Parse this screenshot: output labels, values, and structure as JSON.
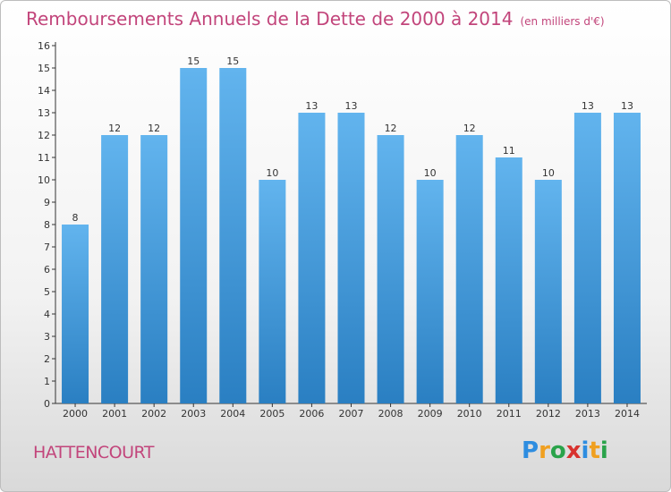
{
  "header": {
    "title": "Remboursements Annuels de la Dette de 2000 à 2014",
    "subtitle": "(en milliers d'€)"
  },
  "footer": {
    "town": "HATTENCOURT",
    "logo_letters": [
      "P",
      "r",
      "o",
      "x",
      "i",
      "t",
      "i"
    ],
    "logo_colors": [
      "#2e8de0",
      "#f0a020",
      "#2aa34a",
      "#d8322e",
      "#2e8de0",
      "#f0a020",
      "#2aa34a"
    ]
  },
  "colors": {
    "bar_light": "#62b4ee",
    "bar_dark": "#2a7fc2",
    "title": "#c2457b",
    "axis": "#333333"
  },
  "chart_data": {
    "type": "bar",
    "title": "Remboursements Annuels de la Dette de 2000 à 2014",
    "ylabel": "",
    "xlabel": "",
    "categories": [
      "2000",
      "2001",
      "2002",
      "2003",
      "2004",
      "2005",
      "2006",
      "2007",
      "2008",
      "2009",
      "2010",
      "2011",
      "2012",
      "2013",
      "2014"
    ],
    "values": [
      8,
      12,
      12,
      15,
      15,
      10,
      13,
      13,
      12,
      10,
      12,
      11,
      10,
      13,
      13
    ],
    "ylim": [
      0,
      16
    ],
    "yticks": [
      0,
      1,
      2,
      3,
      4,
      5,
      6,
      7,
      8,
      9,
      10,
      11,
      12,
      13,
      14,
      15,
      16
    ],
    "grid": false
  }
}
